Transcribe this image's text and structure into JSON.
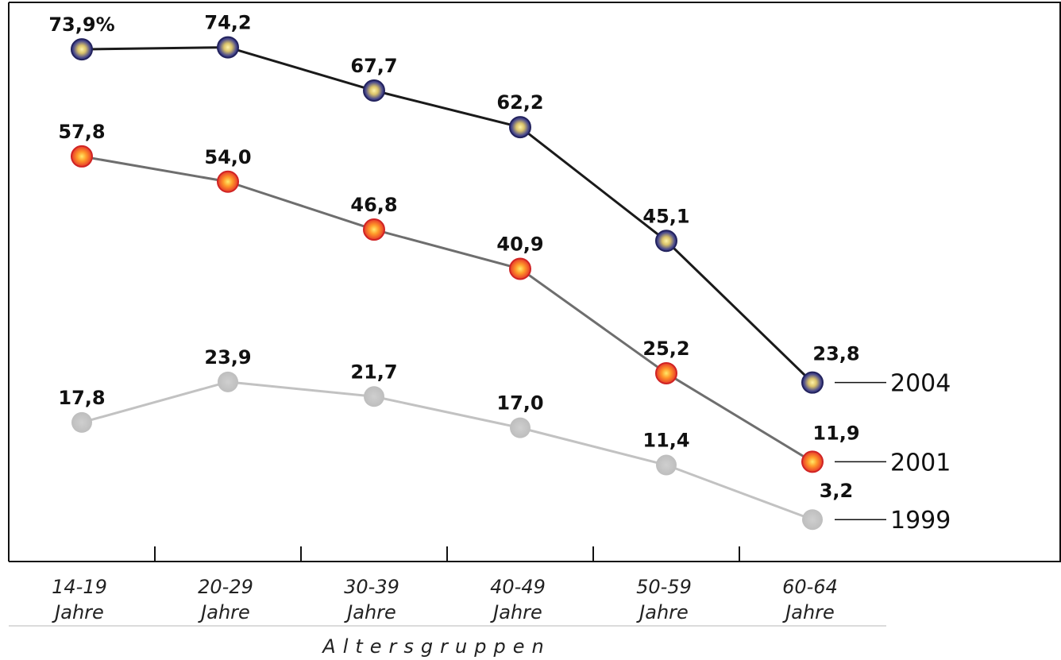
{
  "chart_data": {
    "type": "line",
    "xlabel": "Altersgruppen",
    "categories": [
      "14-19 Jahre",
      "20-29 Jahre",
      "30-39 Jahre",
      "40-49 Jahre",
      "50-59 Jahre",
      "60-64 Jahre"
    ],
    "tick_lines": [
      [
        "14-19",
        "Jahre"
      ],
      [
        "20-29",
        "Jahre"
      ],
      [
        "30-39",
        "Jahre"
      ],
      [
        "40-49",
        "Jahre"
      ],
      [
        "50-59",
        "Jahre"
      ],
      [
        "60-64",
        "Jahre"
      ]
    ],
    "series": [
      {
        "name": "2004",
        "values": [
          73.9,
          74.2,
          67.7,
          62.2,
          45.1,
          23.8
        ],
        "labels": [
          "73,9%",
          "74,2",
          "67,7",
          "62,2",
          "45,1",
          "23,8"
        ],
        "line_color": "#1a1a1a",
        "marker": "blue-gold"
      },
      {
        "name": "2001",
        "values": [
          57.8,
          54.0,
          46.8,
          40.9,
          25.2,
          11.9
        ],
        "labels": [
          "57,8",
          "54,0",
          "46,8",
          "40,9",
          "25,2",
          "11,9"
        ],
        "line_color": "#6e6e6e",
        "marker": "red-orange"
      },
      {
        "name": "1999",
        "values": [
          17.8,
          23.9,
          21.7,
          17.0,
          11.4,
          3.2
        ],
        "labels": [
          "17,8",
          "23,9",
          "21,7",
          "17,0",
          "11,4",
          "3,2"
        ],
        "line_color": "#c2c2c2",
        "marker": "gray"
      }
    ],
    "legend_placement": "inline-right",
    "grid": false
  }
}
